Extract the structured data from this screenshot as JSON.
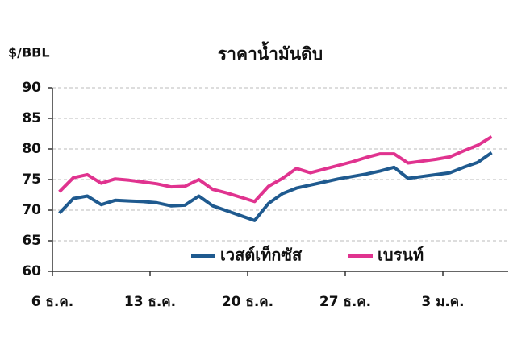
{
  "chart_data": {
    "type": "line",
    "title": "ราคาน้ำมันดิบ",
    "y_label": "$/BBL",
    "categories": [
      "6 ธ.ค.",
      null,
      null,
      null,
      null,
      null,
      null,
      "13 ธ.ค.",
      null,
      null,
      null,
      null,
      null,
      null,
      "20 ธ.ค.",
      null,
      null,
      null,
      null,
      null,
      null,
      "27 ธ.ค.",
      null,
      null,
      null,
      null,
      null,
      null,
      "3 ม.ค.",
      null,
      null,
      null
    ],
    "series": [
      {
        "name": "เวสต์เท็กซัส",
        "color": "#1f5a8f",
        "values": [
          69.5,
          71.9,
          72.3,
          70.9,
          71.6,
          71.5,
          71.4,
          71.2,
          70.7,
          70.8,
          72.3,
          70.7,
          69.9,
          69.1,
          68.3,
          71.1,
          72.7,
          73.6,
          74.1,
          74.6,
          75.1,
          75.5,
          75.9,
          76.4,
          77.0,
          75.2,
          75.5,
          75.8,
          76.1,
          77.0,
          77.8,
          79.4
        ]
      },
      {
        "name": "เบรนท์",
        "color": "#e0338f",
        "values": [
          73.0,
          75.3,
          75.8,
          74.4,
          75.1,
          74.9,
          74.6,
          74.3,
          73.8,
          73.9,
          75.0,
          73.4,
          72.8,
          72.1,
          71.4,
          73.9,
          75.2,
          76.8,
          76.1,
          76.7,
          77.3,
          77.9,
          78.6,
          79.2,
          79.2,
          77.7,
          78.0,
          78.3,
          78.7,
          79.7,
          80.6,
          82.0
        ]
      }
    ],
    "ylim": [
      60,
      90
    ],
    "yticks": [
      60,
      65,
      70,
      75,
      80,
      85,
      90
    ],
    "grid": true,
    "legend": "lower right"
  }
}
